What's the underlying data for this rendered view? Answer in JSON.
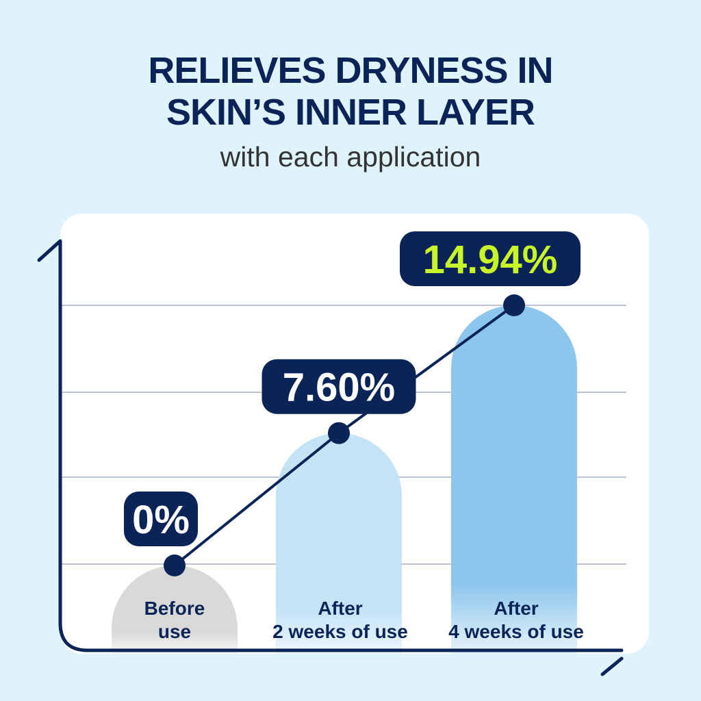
{
  "header": {
    "title_line1": "RELIEVES DRYNESS IN",
    "title_line2": "SKIN’S INNER LAYER",
    "subtitle": "with each application"
  },
  "chart_data": {
    "type": "bar",
    "categories": [
      [
        "Before",
        "use"
      ],
      [
        "After",
        "2 weeks of use"
      ],
      [
        "After",
        "4 weeks of use"
      ]
    ],
    "values": [
      0,
      7.6,
      14.94
    ],
    "value_labels": [
      "0%",
      "7.60%",
      "14.94%"
    ],
    "ylim": [
      0,
      14.94
    ],
    "grid": true,
    "overlay_line": true,
    "colors": {
      "bars": [
        "#d9d9d9",
        "#c3e3f7",
        "#8dc6ec"
      ],
      "navy": "#0a2457",
      "highlight_label": "#c8f52a",
      "label_text": "#ffffff",
      "grid": "#bcc4d2"
    }
  }
}
